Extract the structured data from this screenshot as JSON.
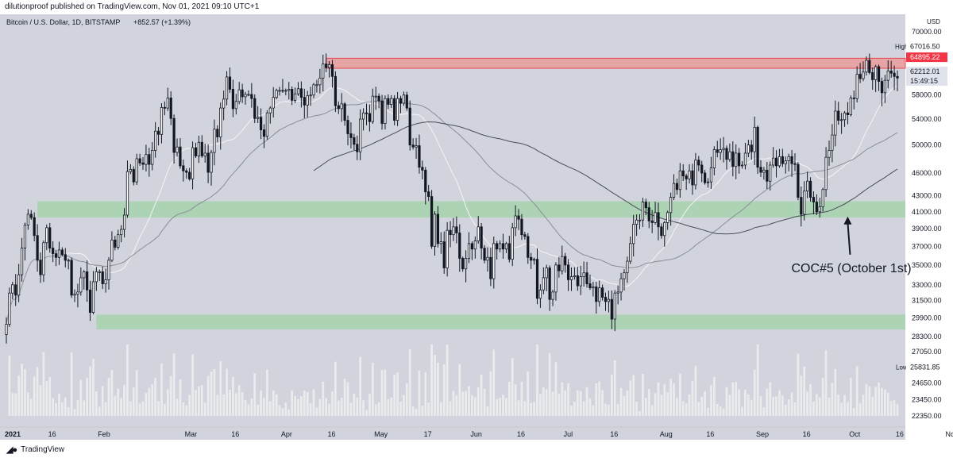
{
  "header": {
    "publisher_line": "dilutionproof published on TradingView.com, Nov 01, 2021 09:10 UTC+1"
  },
  "footer": {
    "brand": "TradingView"
  },
  "colors": {
    "background": "#d1d4dc",
    "resistance_zone": "#e8a0a0",
    "support_zone": "#a9d3b0",
    "candle": "#131722",
    "ma_white": "#f5f5f5",
    "ma_grey": "#8a8d96",
    "ma_dark": "#4a4d56",
    "volume": "#eeeeee",
    "price_tag_red": "#f23645"
  },
  "chart_data": {
    "type": "candlestick",
    "symbol_line": "Bitcoin / U.S. Dollar, 1D, BITSTAMP",
    "change_text": "+852.57 (+1.39%)",
    "currency": "USD",
    "y_scale": "log",
    "y_ticks": [
      70000,
      67016.5,
      64895.22,
      62212.01,
      58000,
      54000,
      50000,
      46000,
      43000,
      41000,
      39000,
      37000,
      35000,
      33000,
      31500,
      29900,
      28300,
      27050,
      25831.85,
      24650,
      23450,
      22350
    ],
    "y_tick_labels": [
      "70000.00",
      "67016.50",
      "64895.22",
      "62212.01",
      "58000.00",
      "54000.00",
      "50000.00",
      "46000.00",
      "43000.00",
      "41000.00",
      "39000.00",
      "37000.00",
      "35000.00",
      "33000.00",
      "31500.00",
      "29900.00",
      "28300.00",
      "27050.00",
      "25831.85",
      "24650.00",
      "23450.00",
      "22350.00"
    ],
    "price_tags": {
      "high_label": "High",
      "high_value": "67016.50",
      "resistance_value": "64895.22",
      "last_value": "62212.01",
      "countdown": "15:49:15",
      "low_label": "Low",
      "low_value": "25831.85"
    },
    "x_labels": [
      "2021",
      "16",
      "Feb",
      "Mar",
      "16",
      "Apr",
      "16",
      "May",
      "17",
      "Jun",
      "16",
      "Jul",
      "16",
      "Aug",
      "16",
      "Sep",
      "16",
      "Oct",
      "16",
      "Nov"
    ],
    "x_label_days": [
      0,
      15,
      31,
      59,
      74,
      90,
      105,
      120,
      136,
      151,
      166,
      181,
      196,
      212,
      227,
      243,
      258,
      273,
      288,
      304
    ],
    "zones": [
      {
        "kind": "resistance",
        "low": 62800,
        "high": 64700,
        "start_day": 103
      },
      {
        "kind": "support",
        "low": 40300,
        "high": 42300,
        "start_day": 10
      },
      {
        "kind": "support",
        "low": 28900,
        "high": 30200,
        "start_day": 29
      }
    ],
    "annotation": {
      "text": "COC#5 (October 1st)",
      "point_day": 271,
      "point_price": 41000
    },
    "daily_closes": [
      29350,
      32200,
      33000,
      32000,
      34000,
      36800,
      39400,
      40700,
      40300,
      38200,
      35500,
      34000,
      37400,
      39100,
      36800,
      36200,
      35800,
      36600,
      36100,
      35500,
      35500,
      32000,
      32100,
      32300,
      33700,
      34300,
      32500,
      30400,
      33300,
      34300,
      34300,
      33100,
      33500,
      35500,
      37700,
      36900,
      38300,
      38900,
      40600,
      46200,
      46500,
      44800,
      48000,
      47400,
      47200,
      48600,
      47200,
      49200,
      52100,
      51600,
      55900,
      55800,
      57500,
      54100,
      48900,
      49700,
      47000,
      46300,
      46100,
      45200,
      49600,
      48400,
      50400,
      48400,
      48800,
      46100,
      48900,
      52400,
      51200,
      55800,
      57300,
      61200,
      59000,
      55700,
      56900,
      58900,
      57700,
      58100,
      58100,
      57400,
      54100,
      54300,
      52300,
      51300,
      55000,
      55800,
      57600,
      58800,
      58800,
      58700,
      58800,
      59000,
      57100,
      58200,
      59100,
      57600,
      56300,
      57900,
      58000,
      59800,
      59800,
      61000,
      63600,
      62900,
      63500,
      61300,
      56200,
      55700,
      56500,
      53800,
      51700,
      51100,
      50100,
      49000,
      54000,
      55000,
      54900,
      53600,
      57800,
      57800,
      57000,
      53300,
      57400,
      56400,
      57400,
      53800,
      57400,
      56600,
      58000,
      55800,
      50000,
      49700,
      49900,
      46800,
      46400,
      43500,
      42900,
      37000,
      40700,
      37300,
      37500,
      34700,
      38800,
      38300,
      39200,
      38500,
      35700,
      34600,
      35700,
      37300,
      36700,
      37600,
      39200,
      36800,
      35500,
      35800,
      33600,
      37300,
      36700,
      37300,
      36700,
      37300,
      35600,
      39100,
      40500,
      40100,
      38300,
      38100,
      35800,
      35500,
      35600,
      31700,
      32500,
      33700,
      34700,
      31600,
      32300,
      35000,
      34400,
      35900,
      35000,
      33500,
      33800,
      33900,
      32900,
      33800,
      34200,
      33100,
      32700,
      32800,
      31400,
      32700,
      31800,
      31400,
      31600,
      29800,
      32200,
      32300,
      33600,
      34200,
      35400,
      37300,
      39500,
      40000,
      40000,
      42200,
      41500,
      39900,
      39700,
      40900,
      39200,
      38200,
      39700,
      40900,
      42800,
      44600,
      43800,
      46300,
      45600,
      45200,
      46300,
      44400,
      47800,
      47100,
      46000,
      44700,
      44800,
      46700,
      49300,
      48900,
      49300,
      49500,
      47900,
      49000,
      46900,
      48800,
      47000,
      47100,
      48800,
      50000,
      49000,
      52700,
      46800,
      46100,
      46400,
      44900,
      47100,
      48100,
      47000,
      48300,
      47300,
      47700,
      48300,
      47300,
      47200,
      42800,
      40700,
      43600,
      44900,
      42800,
      42200,
      41000,
      41600,
      43800,
      48200,
      49200,
      51500,
      55300,
      53800,
      53900,
      55000,
      54700,
      57500,
      57400,
      61700,
      60900,
      62100,
      64300,
      62000,
      60700,
      63100,
      60400,
      58400,
      60600,
      62300,
      61900,
      61300,
      61000
    ]
  }
}
